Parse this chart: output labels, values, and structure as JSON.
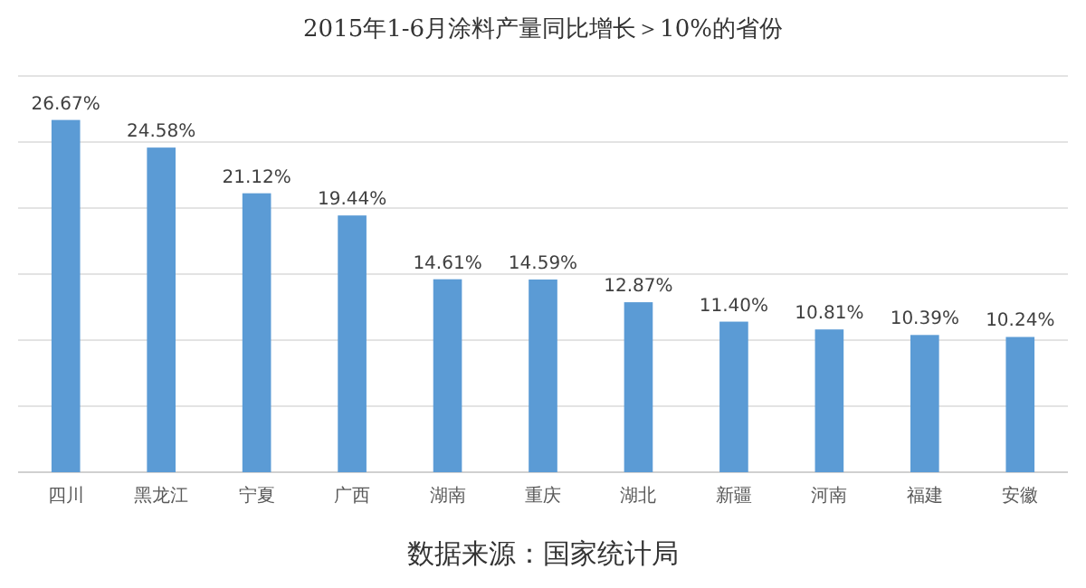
{
  "chart_data": {
    "type": "bar",
    "title": "2015年1-6月涂料产量同比增长＞10%的省份",
    "categories": [
      "四川",
      "黑龙江",
      "宁夏",
      "广西",
      "湖南",
      "重庆",
      "湖北",
      "新疆",
      "河南",
      "福建",
      "安徽"
    ],
    "values": [
      26.67,
      24.58,
      21.12,
      19.44,
      14.61,
      14.59,
      12.87,
      11.4,
      10.81,
      10.39,
      10.24
    ],
    "value_labels": [
      "26.67%",
      "24.58%",
      "21.12%",
      "19.44%",
      "14.61%",
      "14.59%",
      "12.87%",
      "11.40%",
      "10.81%",
      "10.39%",
      "10.24%"
    ],
    "color": "#5b9bd5",
    "ylim": [
      0,
      30
    ],
    "yticks": [
      {
        "value": 0,
        "label": null
      },
      {
        "value": 5,
        "label": null
      },
      {
        "value": 10,
        "label": null
      },
      {
        "value": 15,
        "label": null
      },
      {
        "value": 20,
        "label": null
      },
      {
        "value": 25,
        "label": null
      },
      {
        "value": 30,
        "label": null
      }
    ],
    "tick_labels": "x",
    "grid": "y",
    "annotations": [
      "数据来源：国家统计局"
    ]
  }
}
